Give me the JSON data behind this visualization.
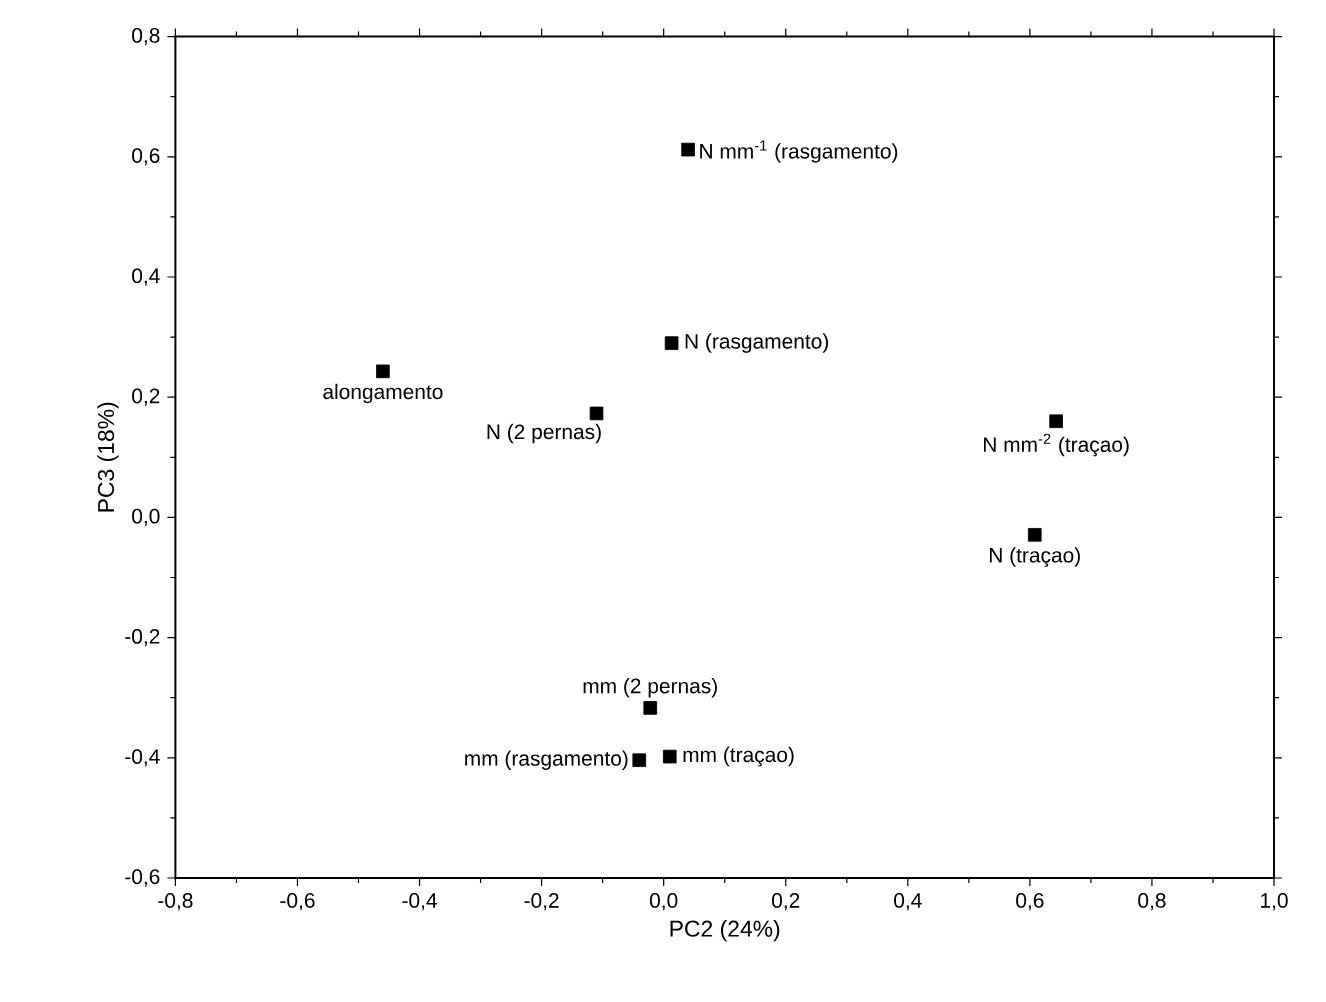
{
  "chart_data": {
    "type": "scatter",
    "xlabel": "PC2 (24%)",
    "ylabel": "PC3 (18%)",
    "x": [
      -0.46,
      -0.11,
      0.013,
      0.04,
      0.643,
      0.608,
      -0.022,
      -0.04,
      0.01
    ],
    "series": [
      {
        "color": "#000000",
        "values": [
          0.243,
          0.173,
          0.29,
          0.612,
          0.16,
          -0.029,
          -0.317,
          -0.404,
          -0.398
        ]
      }
    ],
    "marker": "square",
    "xlim": [
      -0.8,
      1.0
    ],
    "ylim": [
      -0.6,
      0.8
    ],
    "xticks": [
      {
        "value": -0.8,
        "label": "-0,8"
      },
      {
        "value": -0.6,
        "label": "-0,6"
      },
      {
        "value": -0.4,
        "label": "-0,4"
      },
      {
        "value": -0.2,
        "label": "-0,2"
      },
      {
        "value": 0.0,
        "label": "0,0"
      },
      {
        "value": 0.2,
        "label": "0,2"
      },
      {
        "value": 0.4,
        "label": "0,4"
      },
      {
        "value": 0.6,
        "label": "0,6"
      },
      {
        "value": 0.8,
        "label": "0,8"
      },
      {
        "value": 1.0,
        "label": "1,0"
      }
    ],
    "yticks": [
      {
        "value": -0.6,
        "label": "-0,6"
      },
      {
        "value": -0.4,
        "label": "-0,4"
      },
      {
        "value": -0.2,
        "label": "-0,2"
      },
      {
        "value": 0.0,
        "label": "0,0"
      },
      {
        "value": 0.2,
        "label": "0,2"
      },
      {
        "value": 0.4,
        "label": "0,4"
      },
      {
        "value": 0.6,
        "label": "0,6"
      },
      {
        "value": 0.8,
        "label": "0,8"
      }
    ],
    "annotations": [
      {
        "text": "alongamento",
        "x": -0.46,
        "y": 0.243
      },
      {
        "text": "N (2 pernas)",
        "x": -0.11,
        "y": 0.173
      },
      {
        "text": "N (rasgamento)",
        "x": 0.013,
        "y": 0.29
      },
      {
        "text": "N mm$^{-1}$ (rasgamento)",
        "x": 0.04,
        "y": 0.612
      },
      {
        "text": "N mm$^{-2}$ (traçao)",
        "x": 0.643,
        "y": 0.16
      },
      {
        "text": "N (traçao)",
        "x": 0.608,
        "y": -0.029
      },
      {
        "text": "mm (2 pernas)",
        "x": -0.022,
        "y": -0.317
      },
      {
        "text": "mm (rasgamento)",
        "x": -0.04,
        "y": -0.404
      },
      {
        "text": "mm (traçao)",
        "x": 0.01,
        "y": -0.398
      }
    ]
  }
}
